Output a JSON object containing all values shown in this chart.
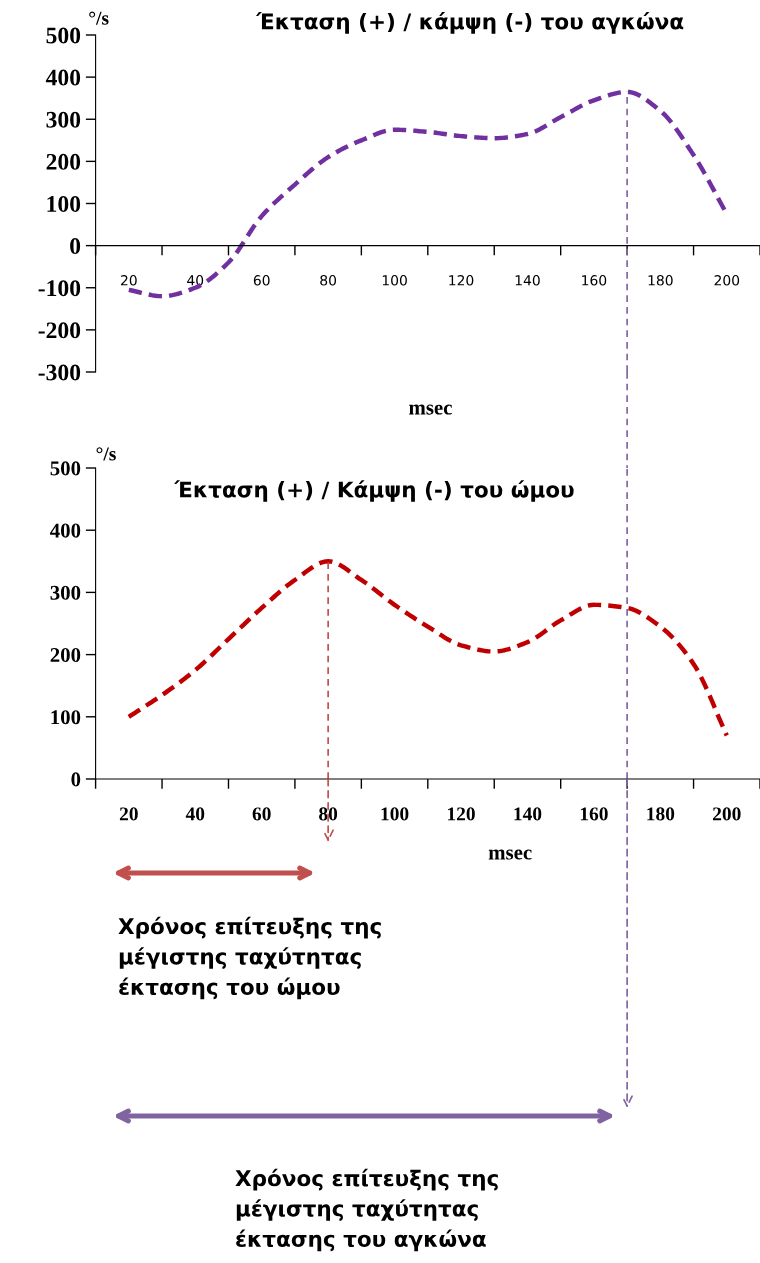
{
  "chart_data": [
    {
      "type": "line",
      "title": "Έκταση (+) / κάμψη (-) του αγκώνα",
      "xlabel": "msec",
      "ylabel": "°/s",
      "x": [
        20,
        30,
        40,
        50,
        60,
        70,
        80,
        90,
        100,
        110,
        120,
        130,
        140,
        150,
        160,
        170,
        180,
        190,
        200
      ],
      "series": [
        {
          "color": "#7030a0",
          "values": [
            -105,
            -120,
            -100,
            -40,
            70,
            145,
            210,
            250,
            275,
            270,
            260,
            255,
            265,
            305,
            345,
            365,
            320,
            215,
            75
          ]
        }
      ],
      "xlim": [
        10,
        210
      ],
      "xticks": [
        {
          "value": 10,
          "label": null
        },
        20,
        {
          "value": 30,
          "label": null
        },
        40,
        {
          "value": 50,
          "label": null
        },
        60,
        {
          "value": 70,
          "label": null
        },
        80,
        {
          "value": 90,
          "label": null
        },
        100,
        {
          "value": 110,
          "label": null
        },
        120,
        {
          "value": 130,
          "label": null
        },
        140,
        {
          "value": 150,
          "label": null
        },
        160,
        {
          "value": 170,
          "label": null
        },
        180,
        {
          "value": 190,
          "label": null
        },
        200,
        {
          "value": 210,
          "label": null
        }
      ],
      "ylim": [
        -300,
        500
      ],
      "yticks": [
        -300,
        -200,
        -100,
        0,
        100,
        200,
        300,
        400,
        500
      ],
      "ref_lines": [
        {
          "axis": "x",
          "value": 170,
          "color": "#8064a2",
          "line_style": "dashed"
        }
      ],
      "line_style": "dashed",
      "grid": false
    },
    {
      "type": "line",
      "title": "Έκταση (+) / Κάμψη (-) του ώμου",
      "xlabel": "msec",
      "ylabel": "°/s",
      "x": [
        20,
        30,
        40,
        50,
        60,
        70,
        80,
        90,
        100,
        110,
        120,
        130,
        140,
        150,
        160,
        170,
        180,
        190,
        200
      ],
      "series": [
        {
          "color": "#c00000",
          "values": [
            100,
            135,
            175,
            225,
            275,
            320,
            350,
            320,
            280,
            245,
            215,
            205,
            220,
            255,
            280,
            275,
            245,
            185,
            70
          ]
        }
      ],
      "xlim": [
        10,
        210
      ],
      "xticks": [
        {
          "value": 10,
          "label": null
        },
        20,
        {
          "value": 30,
          "label": null
        },
        40,
        {
          "value": 50,
          "label": null
        },
        60,
        {
          "value": 70,
          "label": null
        },
        80,
        {
          "value": 90,
          "label": null
        },
        100,
        {
          "value": 110,
          "label": null
        },
        120,
        {
          "value": 130,
          "label": null
        },
        140,
        {
          "value": 150,
          "label": null
        },
        160,
        {
          "value": 170,
          "label": null
        },
        180,
        {
          "value": 190,
          "label": null
        },
        200,
        {
          "value": 210,
          "label": null
        }
      ],
      "ylim": [
        0,
        500
      ],
      "yticks": [
        0,
        100,
        200,
        300,
        400,
        500
      ],
      "ref_lines": [
        {
          "axis": "x",
          "value": 80,
          "color": "#c0504d",
          "line_style": "dashed"
        },
        {
          "axis": "x",
          "value": 170,
          "color": "#8064a2",
          "line_style": "dashed"
        }
      ],
      "line_style": "dashed",
      "grid": false,
      "annotations": [
        "Χρόνος επίτευξης της\nμέγιστης ταχύτητας\nέκτασης του ώμου",
        "Χρόνος επίτευξης της\nμέγιστης ταχύτητας\nέκτασης του αγκώνα"
      ]
    }
  ]
}
